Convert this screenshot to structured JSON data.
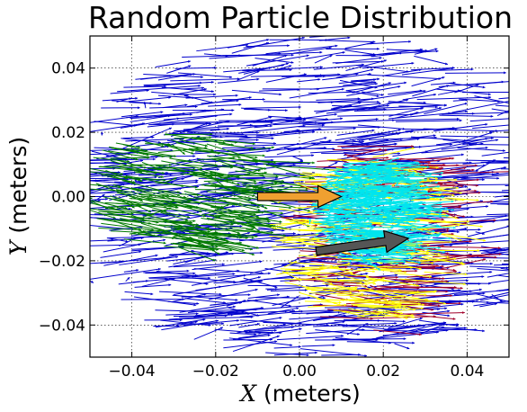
{
  "chart_data": {
    "type": "scatter",
    "plot_kind": "quiver",
    "title": "Random Particle Distribution",
    "xlabel_var": "X",
    "xlabel_unit": " (meters)",
    "ylabel_var": "Y",
    "ylabel_unit": " (meters)",
    "xlim": [
      -0.05,
      0.05
    ],
    "ylim": [
      -0.05,
      0.05
    ],
    "xticks": [
      -0.04,
      -0.02,
      0.0,
      0.02,
      0.04
    ],
    "xtick_labels": [
      "−0.04",
      "−0.02",
      "0.00",
      "0.02",
      "0.04"
    ],
    "yticks": [
      0.04,
      0.02,
      0.0,
      -0.02,
      -0.04
    ],
    "ytick_labels": [
      "0.04",
      "0.02",
      "0.00",
      "−0.02",
      "−0.04"
    ],
    "grid": true,
    "grid_style": "dotted",
    "colors": {
      "blue": "#0000cc",
      "green": "#007a00",
      "darkred": "#a0002a",
      "yellow": "#ffff00",
      "cyan": "#00e5ee",
      "orange_arrow": "#f0a030",
      "gray_arrow": "#555555"
    },
    "series": [
      {
        "color": "blue",
        "region": {
          "cx": 0.0,
          "cy": 0.0,
          "rx": 0.06,
          "ry": 0.05
        },
        "count": 900,
        "dx": 0.012,
        "dy": 0.001
      },
      {
        "color": "green",
        "region": {
          "cx": -0.03,
          "cy": 0.002,
          "rx": 0.025,
          "ry": 0.018
        },
        "count": 260,
        "dx": 0.01,
        "dy": -0.002
      },
      {
        "color": "darkred",
        "region": {
          "cx": 0.015,
          "cy": -0.012,
          "rx": 0.02,
          "ry": 0.03
        },
        "count": 170,
        "dx": 0.012,
        "dy": 0.0
      },
      {
        "color": "yellow",
        "region": {
          "cx": 0.012,
          "cy": -0.012,
          "rx": 0.02,
          "ry": 0.026
        },
        "count": 240,
        "dx": 0.01,
        "dy": -0.001
      },
      {
        "color": "cyan",
        "region": {
          "cx": 0.014,
          "cy": -0.005,
          "rx": 0.012,
          "ry": 0.016
        },
        "count": 460,
        "dx": 0.008,
        "dy": 0.0
      }
    ],
    "mean_arrows": [
      {
        "color": "orange_arrow",
        "x": -0.01,
        "y": 0.0,
        "dx": 0.02,
        "dy": 0.0
      },
      {
        "color": "gray_arrow",
        "x": 0.004,
        "y": -0.017,
        "dx": 0.022,
        "dy": 0.004
      }
    ]
  }
}
